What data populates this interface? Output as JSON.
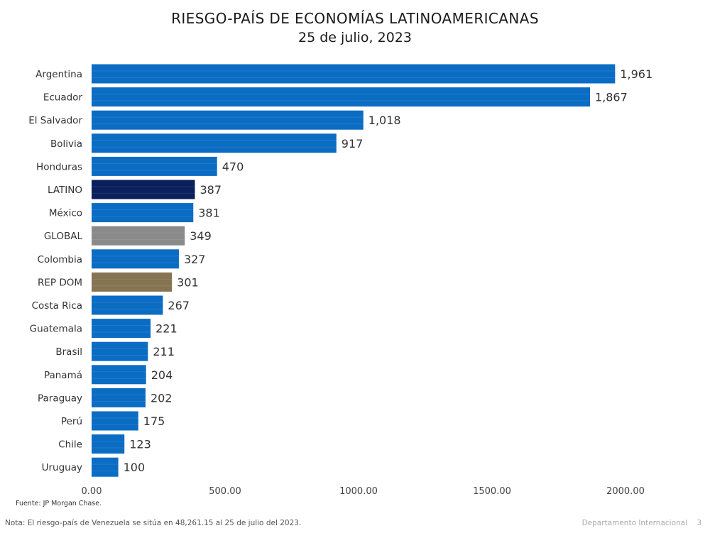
{
  "chart_data": {
    "type": "bar",
    "orientation": "horizontal",
    "title": "RIESGO-PAÍS DE ECONOMÍAS LATINOAMERICANAS",
    "subtitle": "25 de julio, 2023",
    "categories": [
      "Argentina",
      "Ecuador",
      "El Salvador",
      "Bolivia",
      "Honduras",
      "LATINO",
      "México",
      "GLOBAL",
      "Colombia",
      "REP DOM",
      "Costa Rica",
      "Guatemala",
      "Brasil",
      "Panamá",
      "Paraguay",
      "Perú",
      "Chile",
      "Uruguay"
    ],
    "values": [
      1961,
      1867,
      1018,
      917,
      470,
      387,
      381,
      349,
      327,
      301,
      267,
      221,
      211,
      204,
      202,
      175,
      123,
      100
    ],
    "value_labels": [
      "1,961",
      "1,867",
      "1,018",
      "917",
      "470",
      "387",
      "381",
      "349",
      "327",
      "301",
      "267",
      "221",
      "211",
      "204",
      "202",
      "175",
      "123",
      "100"
    ],
    "bar_colors": [
      "#0b6cc4",
      "#0b6cc4",
      "#0b6cc4",
      "#0b6cc4",
      "#0b6cc4",
      "#0b1f5c",
      "#0b6cc4",
      "#8a8a8a",
      "#0b6cc4",
      "#857352",
      "#0b6cc4",
      "#0b6cc4",
      "#0b6cc4",
      "#0b6cc4",
      "#0b6cc4",
      "#0b6cc4",
      "#0b6cc4",
      "#0b6cc4"
    ],
    "x_ticks": [
      0,
      500,
      1000,
      1500,
      2000
    ],
    "x_tick_labels": [
      "0.00",
      "500.00",
      "1000.00",
      "1500.00",
      "2000.00"
    ],
    "xlim": [
      0,
      2000
    ],
    "grid": false,
    "legend": "none"
  },
  "source": "Fuente: JP Morgan Chase.",
  "note": "Nota: El riesgo-país de Venezuela se sitúa en 48,261.15 al 25 de julio del 2023.",
  "footer": {
    "department": "Departamento Internacional",
    "page": "3"
  }
}
